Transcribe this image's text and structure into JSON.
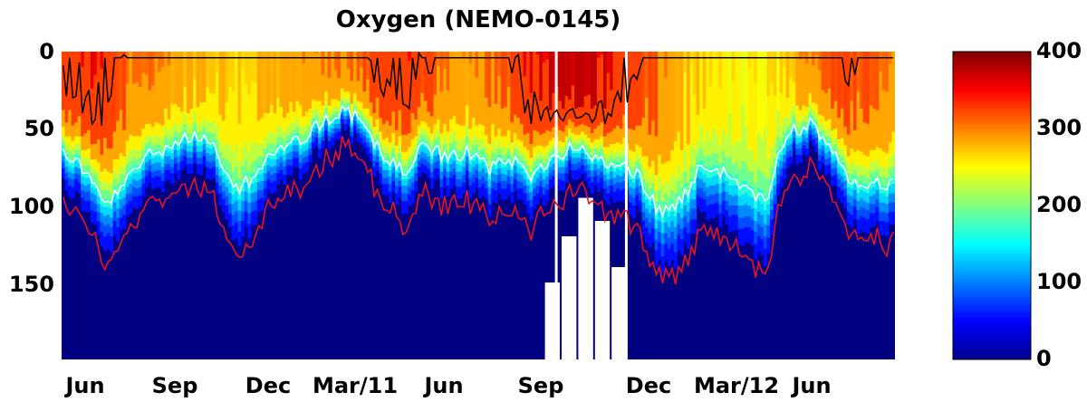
{
  "chart_data": {
    "type": "heatmap",
    "title": "Oxygen (NEMO-0145)",
    "xlabel": "",
    "ylabel": "",
    "x_ticks": [
      "Jun",
      "Sep",
      "Dec",
      "Mar/11",
      "Jun",
      "Sep",
      "Dec",
      "Mar/12",
      "Jun"
    ],
    "y_ticks": [
      "0",
      "50",
      "100",
      "150"
    ],
    "y_tick_values": [
      0,
      50,
      100,
      150
    ],
    "ylim": [
      200,
      0
    ],
    "colorbar": {
      "ticks": [
        "0",
        "100",
        "200",
        "300",
        "400"
      ],
      "tick_values": [
        0,
        100,
        200,
        300,
        400
      ],
      "range": [
        0,
        400
      ],
      "colormap": "jet"
    },
    "contour_colors": {
      "upper": "#000000",
      "middle": "#ffffff",
      "lower": "#e8141e"
    },
    "background_color": "#000080",
    "missing_color": "#ffffff",
    "columns": 260,
    "surface_oxygen": [
      330,
      350,
      320,
      300,
      290,
      280,
      270,
      275,
      285,
      295,
      310,
      330,
      340,
      320,
      295,
      305,
      340,
      370,
      380,
      360,
      330,
      300,
      270,
      255,
      250,
      260,
      300,
      330,
      320,
      300
    ],
    "oxycline_depth": [
      90,
      105,
      140,
      120,
      95,
      88,
      80,
      88,
      140,
      120,
      95,
      85,
      70,
      55,
      60,
      95,
      110,
      85,
      100,
      95,
      110,
      98,
      108,
      96,
      80,
      98,
      100,
      112,
      150,
      145,
      110,
      120,
      140,
      148,
      80,
      68,
      85,
      122,
      120,
      128
    ],
    "vertical_gaps": [
      0.592,
      0.676
    ]
  }
}
